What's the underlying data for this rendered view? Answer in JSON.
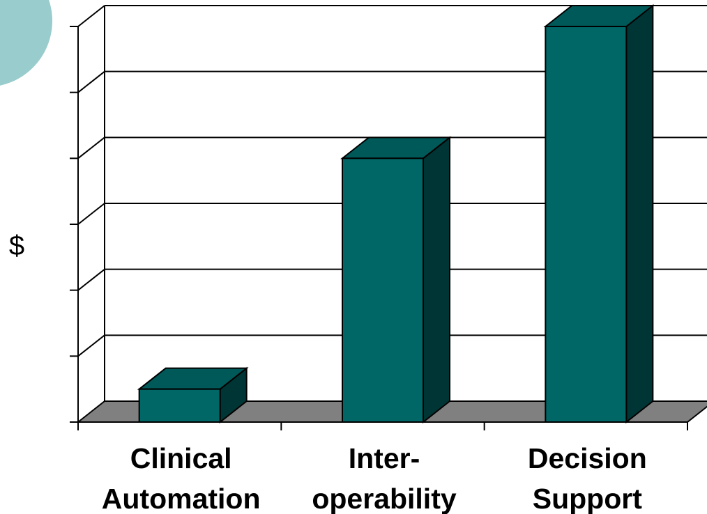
{
  "chart_data": {
    "type": "bar",
    "title": "",
    "xlabel": "",
    "ylabel": "$",
    "categories": [
      [
        "Clinical",
        "Automation"
      ],
      [
        "Inter-",
        "operability"
      ],
      [
        "Decision",
        "Support"
      ]
    ],
    "values": [
      0.5,
      4.0,
      6.0
    ],
    "ylim": [
      0,
      6
    ],
    "grid": true,
    "three_d": true,
    "colors": {
      "bar_front": "#006666",
      "bar_top": "#005959",
      "bar_side": "#003535",
      "floor": "#808080",
      "decor_circle": "#99cccc"
    }
  }
}
